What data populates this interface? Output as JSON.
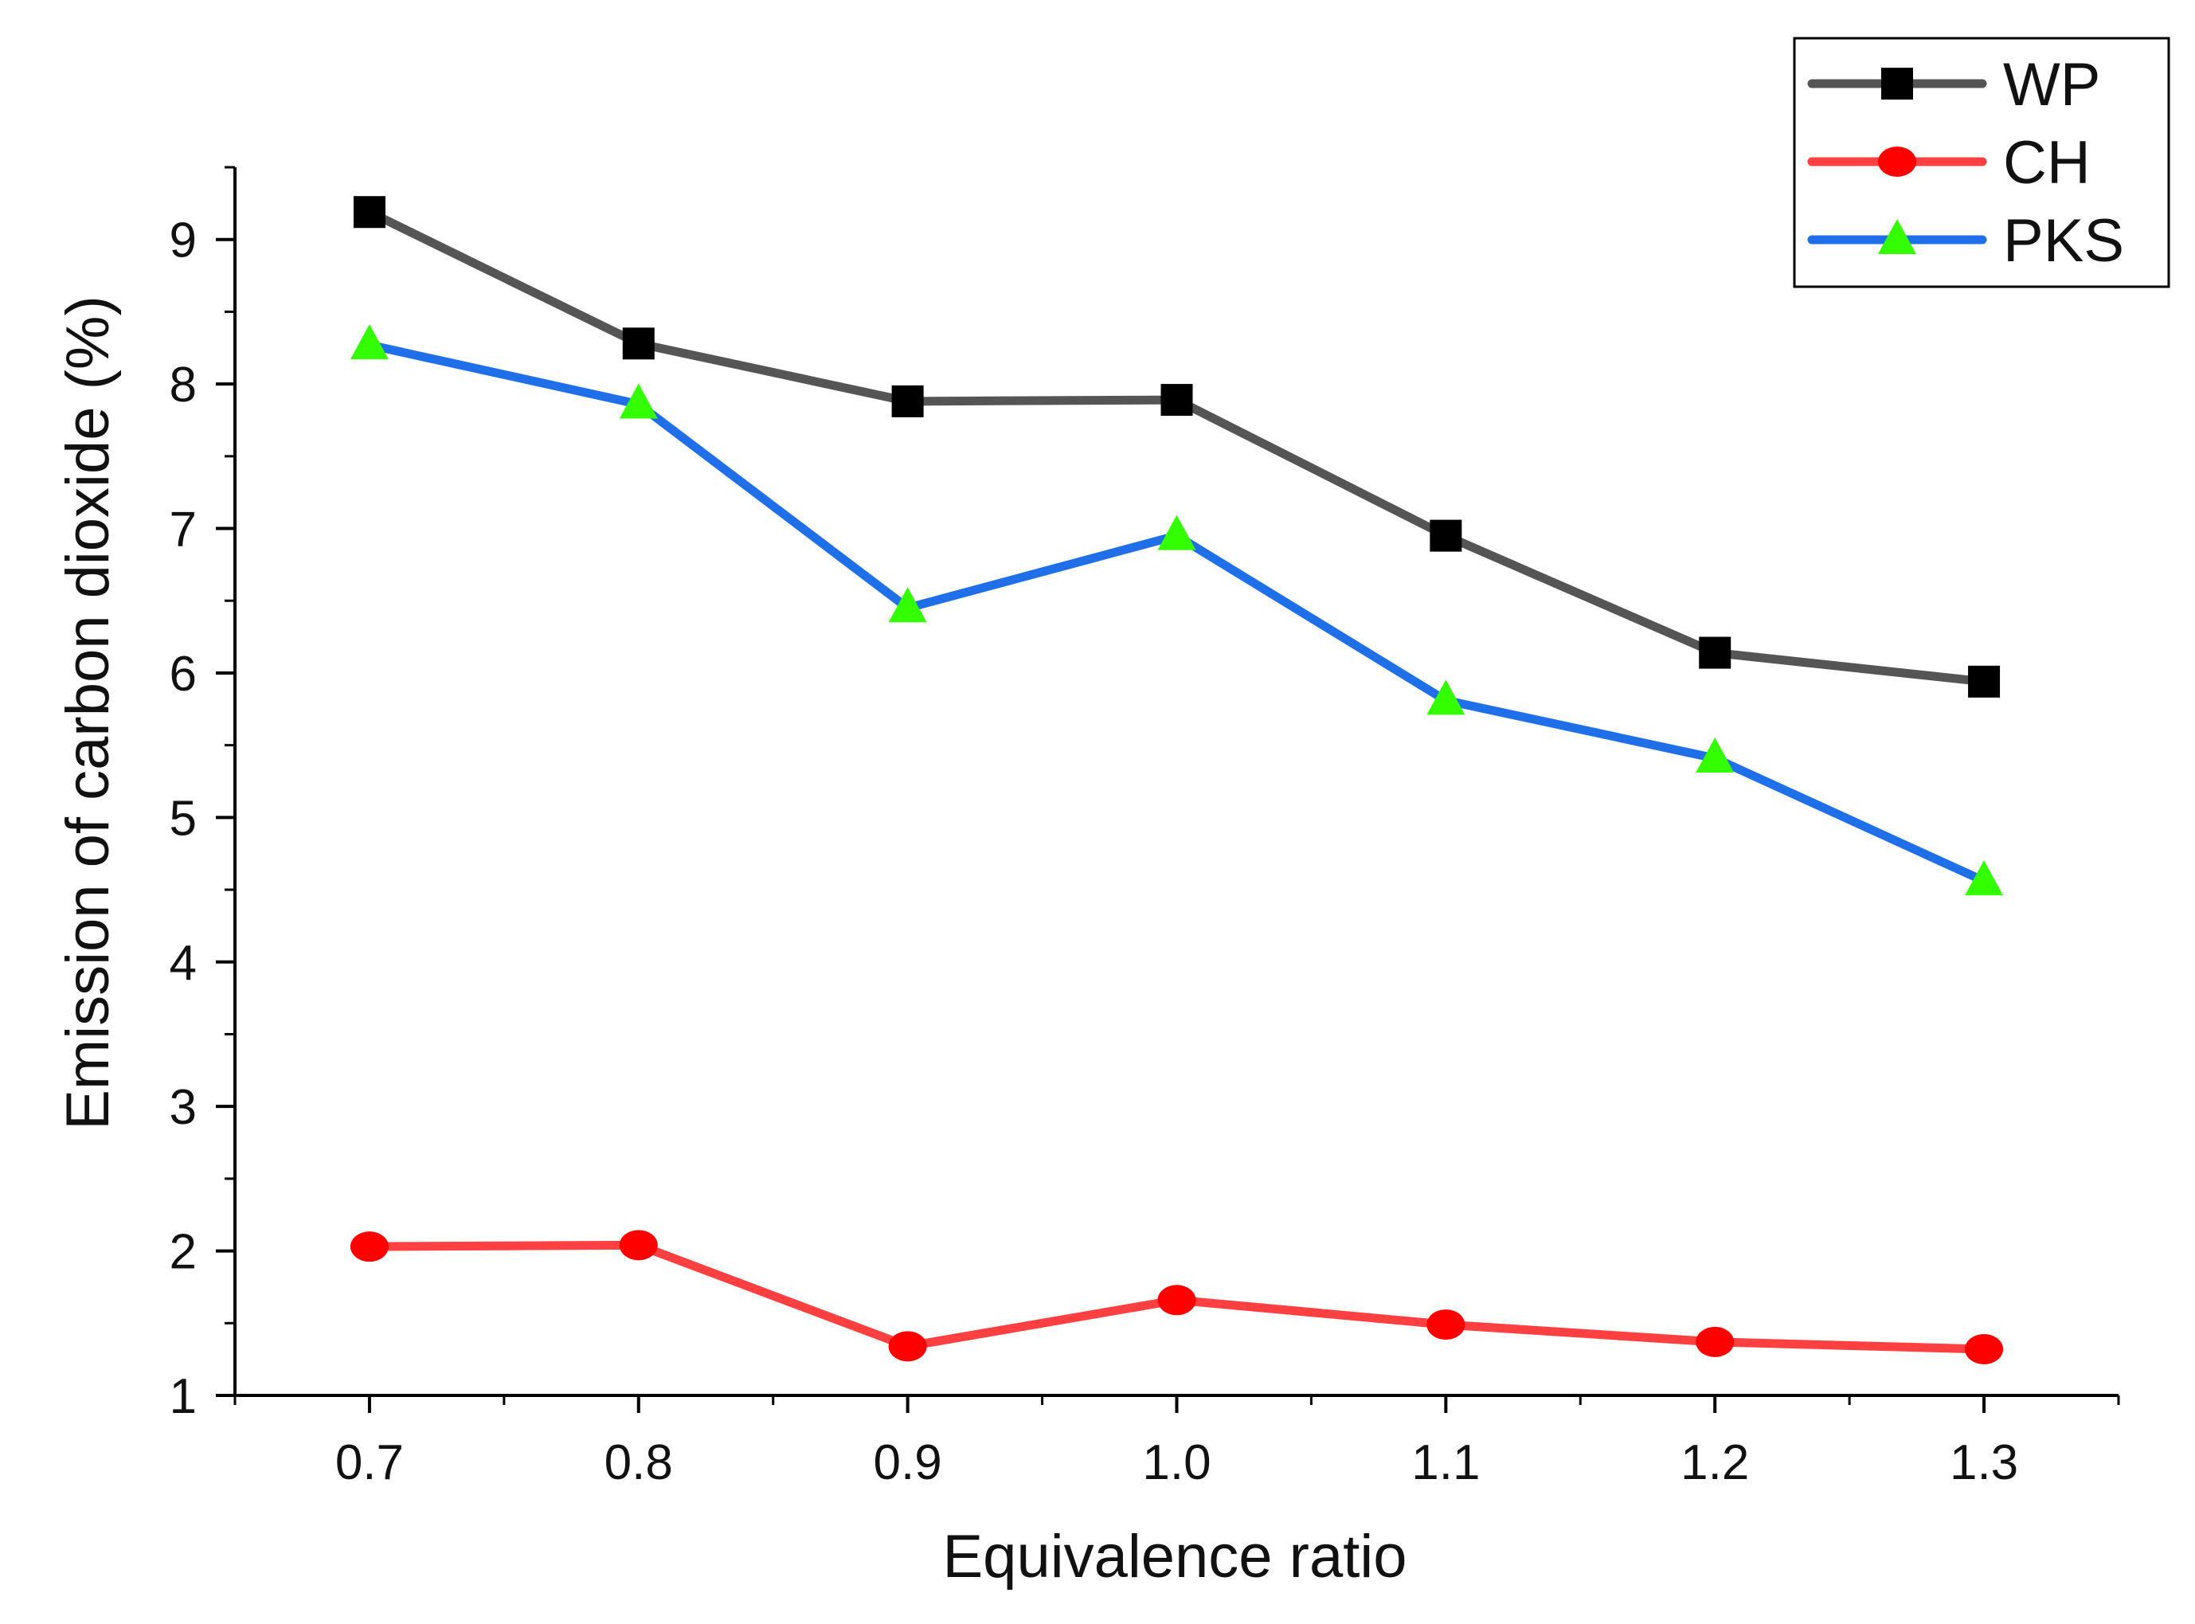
{
  "chart_data": {
    "type": "line",
    "title": "",
    "xlabel": "Equivalence ratio",
    "ylabel": "Emission of carbon dioxide (%)",
    "x": [
      0.7,
      0.8,
      0.9,
      1.0,
      1.1,
      1.2,
      1.3
    ],
    "x_tick_labels": [
      "0.7",
      "0.8",
      "0.9",
      "1.0",
      "1.1",
      "1.2",
      "1.3"
    ],
    "y_tick_labels": [
      "1",
      "2",
      "3",
      "4",
      "5",
      "6",
      "7",
      "8",
      "9"
    ],
    "xlim": [
      0.65,
      1.35
    ],
    "ylim": [
      1,
      9.5
    ],
    "grid": false,
    "legend_position": "top-right",
    "series": [
      {
        "name": "WP",
        "marker": "square",
        "line_color": "#555555",
        "marker_color": "#000000",
        "values": [
          9.19,
          8.28,
          7.88,
          7.89,
          6.95,
          6.14,
          5.94
        ]
      },
      {
        "name": "CH",
        "marker": "circle",
        "line_color": "#ff4040",
        "marker_color": "#ff0000",
        "values": [
          2.03,
          2.04,
          1.34,
          1.66,
          1.49,
          1.37,
          1.32
        ]
      },
      {
        "name": "PKS",
        "marker": "triangle",
        "line_color": "#1f6fe8",
        "marker_color": "#33ff00",
        "values": [
          8.27,
          7.86,
          6.45,
          6.95,
          5.81,
          5.41,
          4.56
        ]
      }
    ]
  }
}
